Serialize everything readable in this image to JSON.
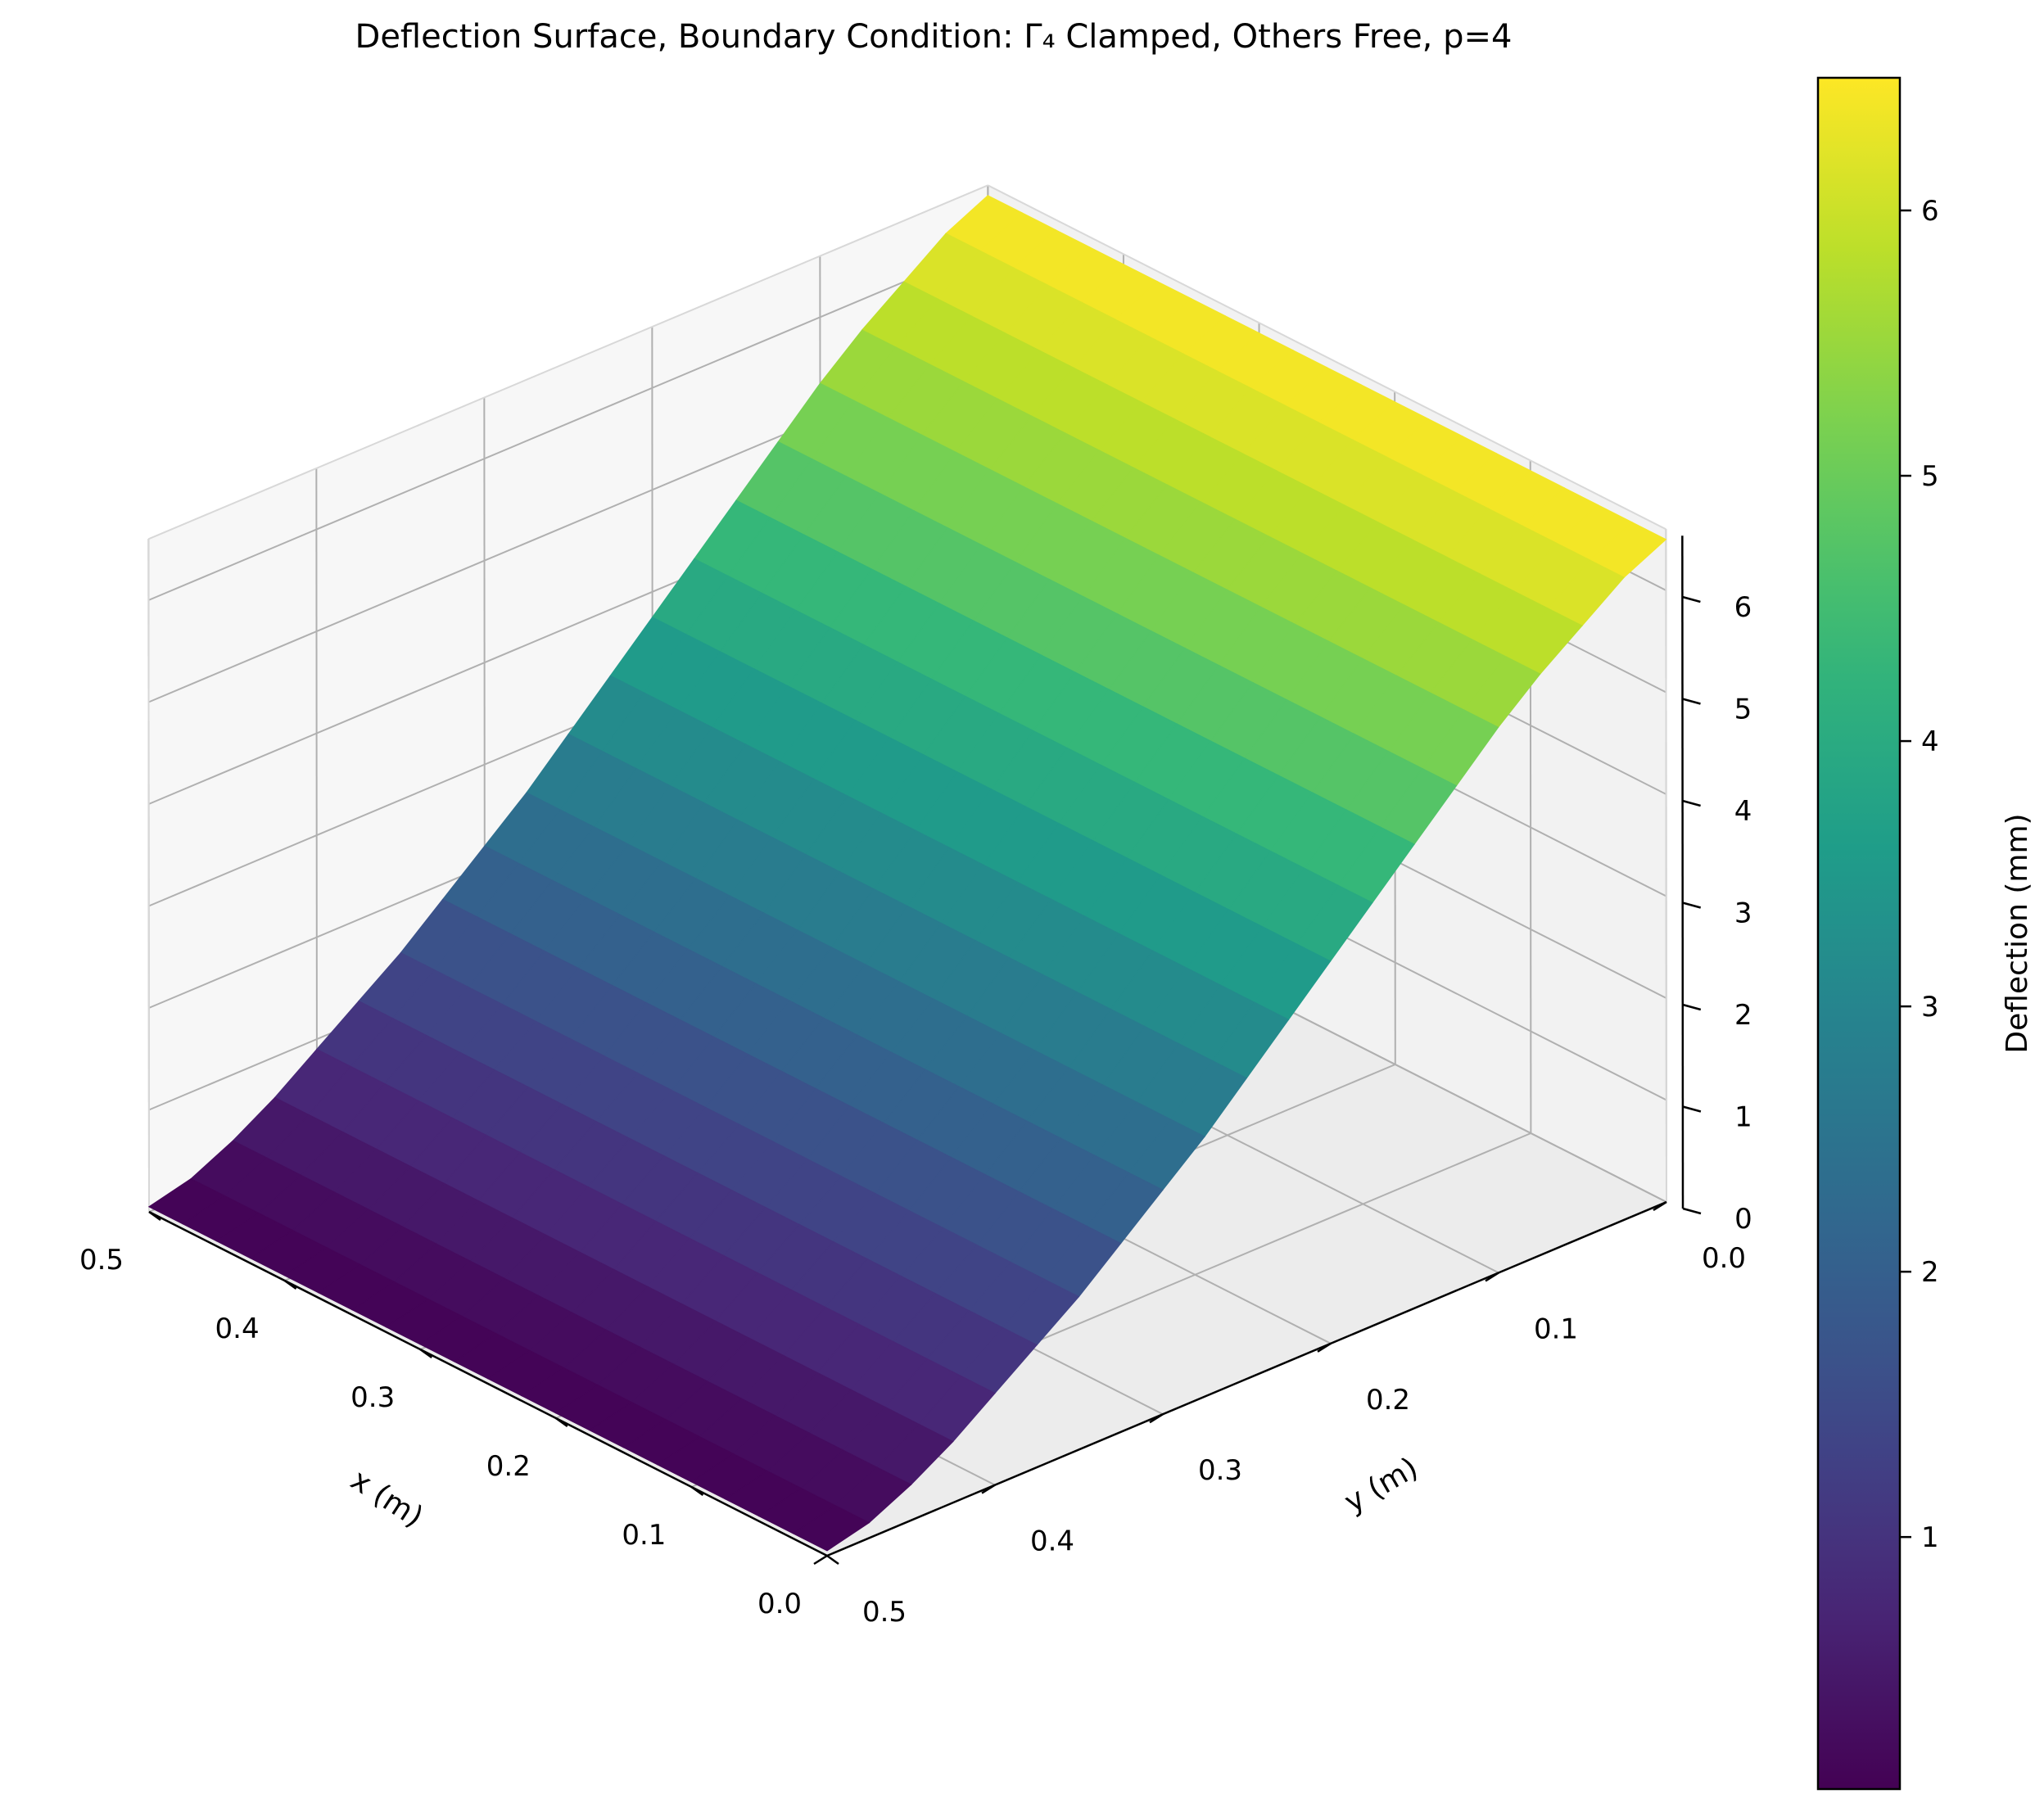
{
  "chart_data": {
    "type": "surface",
    "title": "Deflection Surface, Boundary Condition: Γ₄ Clamped, Others Free, p=4",
    "xlabel": "x (m)",
    "ylabel": "y (m)",
    "zlabel": "Deflection (mm)",
    "colorbar_label": "Deflection (mm)",
    "colormap": "viridis",
    "xlim": [
      0,
      0.5
    ],
    "ylim": [
      0,
      0.5
    ],
    "zlim": [
      0,
      6.6
    ],
    "x_ticks": [
      "0.0",
      "0.1",
      "0.2",
      "0.3",
      "0.4",
      "0.5"
    ],
    "y_ticks": [
      "0.0",
      "0.1",
      "0.2",
      "0.3",
      "0.4",
      "0.5"
    ],
    "z_ticks": [
      "0",
      "1",
      "2",
      "3",
      "4",
      "5",
      "6"
    ],
    "colorbar_ticks": [
      "1",
      "2",
      "3",
      "4",
      "5",
      "6"
    ],
    "colorbar_range": [
      0.05,
      6.5
    ],
    "grid": true,
    "surface": {
      "y": [
        0.0,
        0.025,
        0.05,
        0.075,
        0.1,
        0.125,
        0.15,
        0.175,
        0.2,
        0.225,
        0.25,
        0.275,
        0.3,
        0.325,
        0.35,
        0.375,
        0.4,
        0.425,
        0.45,
        0.475,
        0.5
      ],
      "deflection_mm": [
        6.5,
        6.3,
        6.0,
        5.7,
        5.35,
        4.95,
        4.55,
        4.15,
        3.75,
        3.35,
        2.95,
        2.55,
        2.2,
        1.85,
        1.5,
        1.2,
        0.9,
        0.6,
        0.35,
        0.15,
        0.05
      ],
      "note_x_dependence": "deflection constant along x"
    }
  }
}
